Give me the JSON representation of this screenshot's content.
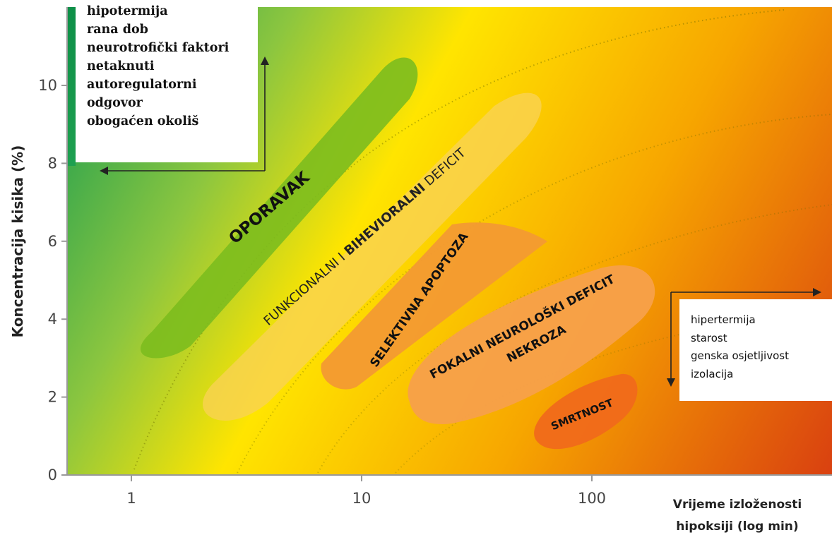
{
  "chart_data": {
    "type": "area",
    "xlabel": [
      "Vrijeme izloženosti",
      "hipoksiji (log min)"
    ],
    "ylabel": "Koncentracija kisika (%)",
    "x_scale": "log",
    "x_ticks": [
      1,
      10,
      100
    ],
    "x_tick_labels": [
      "1",
      "10",
      "100"
    ],
    "y_ticks": [
      0,
      2,
      4,
      6,
      8,
      10
    ],
    "y_tick_labels": [
      "0",
      "2",
      "4",
      "6",
      "8",
      "10"
    ],
    "ylim": [
      0,
      12
    ],
    "gradient_colors": [
      "#22a050",
      "#8cc63f",
      "#ffe500",
      "#f7a600",
      "#d94010"
    ],
    "zones": [
      {
        "label": "OPORAVAK",
        "color": "#7cbd1e"
      },
      {
        "label_parts": [
          "FUNKCIONALNI I ",
          "BIHEVIORALNI",
          " DEFICIT"
        ],
        "color": "#f9d252"
      },
      {
        "label": "SELEKTIVNA APOPTOZA",
        "color": "#f39a31"
      },
      {
        "label_lines": [
          "FOKALNI NEUROLOŠKI DEFICIT",
          "NEKROZA"
        ],
        "color": "#f7a04a"
      },
      {
        "label": "SMRTNOST",
        "color": "#f06a1a"
      }
    ],
    "annotations": {
      "protective_factors": [
        "hipotermija",
        "rana dob",
        "neurotrofički faktori",
        "netaknuti",
        "autoregulatorni",
        "odgovor",
        "obogaćen okoliš"
      ],
      "risk_factors": [
        "hipertermija",
        "starost",
        "genska osjetljivost",
        "izolacija"
      ]
    }
  }
}
